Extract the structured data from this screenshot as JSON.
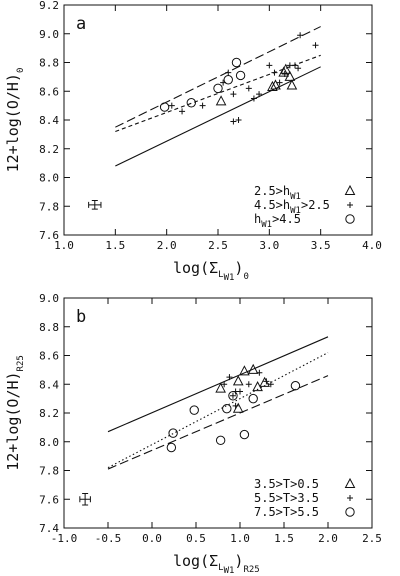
{
  "chart_data": [
    {
      "type": "scatter",
      "panel_label": "a",
      "xlim": [
        1.0,
        4.0
      ],
      "ylim": [
        7.6,
        9.2
      ],
      "xticks": [
        "1.0",
        "1.5",
        "2.0",
        "2.5",
        "3.0",
        "3.5",
        "4.0"
      ],
      "yticks": [
        "7.6",
        "7.8",
        "8.0",
        "8.2",
        "8.4",
        "8.6",
        "8.8",
        "9.0",
        "9.2"
      ],
      "xticks_values": [
        1.0,
        1.5,
        2.0,
        2.5,
        3.0,
        3.5,
        4.0
      ],
      "yticks_values": [
        7.6,
        7.8,
        8.0,
        8.2,
        8.4,
        8.6,
        8.8,
        9.0,
        9.2
      ],
      "xlabel": {
        "main": "log(Σ",
        "sub": "L",
        "subsub": "W1",
        "tail": ")",
        "after_sub": "0"
      },
      "ylabel": {
        "main": "12+log(O/H)",
        "sub": "0"
      },
      "series": [
        {
          "name": "2.5>h W1",
          "name_main": "2.5>h",
          "name_sub": "W1",
          "marker": "triangle",
          "x": [
            2.53,
            3.03,
            3.06,
            3.14,
            3.16,
            3.2,
            3.22
          ],
          "y": [
            8.53,
            8.63,
            8.64,
            8.73,
            8.75,
            8.7,
            8.64
          ]
        },
        {
          "name": "4.5>h W1>2.5",
          "name_main": "4.5>h",
          "name_sub": "W1",
          "name_tail": ">2.5",
          "marker": "plus",
          "x": [
            2.05,
            2.15,
            2.35,
            2.55,
            2.6,
            2.65,
            2.7,
            2.8,
            2.85,
            2.9,
            3.0,
            3.05,
            3.1,
            3.15,
            3.2,
            3.25,
            3.28,
            3.3,
            3.45,
            2.65
          ],
          "y": [
            8.5,
            8.46,
            8.5,
            8.66,
            8.73,
            8.58,
            8.4,
            8.62,
            8.55,
            8.58,
            8.78,
            8.73,
            8.66,
            8.72,
            8.78,
            8.78,
            8.76,
            8.99,
            8.92,
            8.39
          ]
        },
        {
          "name": "hW1>4.5",
          "name_main": "h",
          "name_sub": "W1",
          "name_tail": ">4.5",
          "marker": "circle",
          "x": [
            1.98,
            2.24,
            2.5,
            2.6,
            2.68,
            2.72
          ],
          "y": [
            8.49,
            8.52,
            8.62,
            8.68,
            8.8,
            8.71
          ]
        }
      ],
      "fit_lines": [
        {
          "style": "solid",
          "x": [
            1.5,
            3.5
          ],
          "y": [
            8.08,
            8.77
          ]
        },
        {
          "style": "shortdash",
          "x": [
            1.5,
            3.5
          ],
          "y": [
            8.32,
            8.85
          ]
        },
        {
          "style": "longdash",
          "x": [
            1.5,
            3.5
          ],
          "y": [
            8.35,
            9.05
          ]
        }
      ],
      "error_bar": {
        "x": 1.3,
        "y": 7.81,
        "dx": 0.06,
        "dy": 0.03
      },
      "legend_position": "bottom-right"
    },
    {
      "type": "scatter",
      "panel_label": "b",
      "xlim": [
        -1.0,
        2.5
      ],
      "ylim": [
        7.4,
        9.0
      ],
      "xticks": [
        "-1.0",
        "-0.5",
        "0.0",
        "0.5",
        "1.0",
        "1.5",
        "2.0",
        "2.5"
      ],
      "yticks": [
        "7.4",
        "7.6",
        "7.8",
        "8.0",
        "8.2",
        "8.4",
        "8.6",
        "8.8",
        "9.0"
      ],
      "xticks_values": [
        -1.0,
        -0.5,
        0.0,
        0.5,
        1.0,
        1.5,
        2.0,
        2.5
      ],
      "yticks_values": [
        7.4,
        7.6,
        7.8,
        8.0,
        8.2,
        8.4,
        8.6,
        8.8,
        9.0
      ],
      "xlabel": {
        "main": "log(Σ",
        "sub": "L",
        "subsub": "W1",
        "tail": ")",
        "after_sub": "R25"
      },
      "ylabel": {
        "main": "12+log(O/H)",
        "sub": "R25"
      },
      "series": [
        {
          "name": "3.5>T>0.5",
          "marker": "triangle",
          "x": [
            0.78,
            0.98,
            1.05,
            1.15,
            1.2,
            1.28,
            0.98
          ],
          "y": [
            8.37,
            8.42,
            8.49,
            8.5,
            8.38,
            8.41,
            8.23
          ]
        },
        {
          "name": "5.5>T>3.5",
          "marker": "plus",
          "x": [
            0.82,
            0.88,
            0.92,
            0.95,
            1.0,
            1.1,
            1.22,
            1.3,
            1.35,
            0.95
          ],
          "y": [
            8.4,
            8.45,
            8.32,
            8.25,
            8.35,
            8.4,
            8.48,
            8.42,
            8.4,
            8.35
          ]
        },
        {
          "name": "7.5>T>5.5",
          "marker": "circle",
          "x": [
            0.22,
            0.24,
            0.48,
            0.78,
            0.85,
            0.92,
            1.05,
            1.15,
            1.63
          ],
          "y": [
            7.96,
            8.06,
            8.22,
            8.01,
            8.23,
            8.32,
            8.05,
            8.3,
            8.39
          ]
        }
      ],
      "fit_lines": [
        {
          "style": "solid",
          "x": [
            -0.5,
            2.0
          ],
          "y": [
            8.07,
            8.73
          ]
        },
        {
          "style": "dotted",
          "x": [
            -0.5,
            2.0
          ],
          "y": [
            7.82,
            8.62
          ]
        },
        {
          "style": "longdash",
          "x": [
            -0.5,
            2.0
          ],
          "y": [
            7.81,
            8.46
          ]
        }
      ],
      "error_bar": {
        "x": -0.76,
        "y": 7.6,
        "dx": 0.06,
        "dy": 0.04
      },
      "legend_position": "bottom-right"
    }
  ]
}
